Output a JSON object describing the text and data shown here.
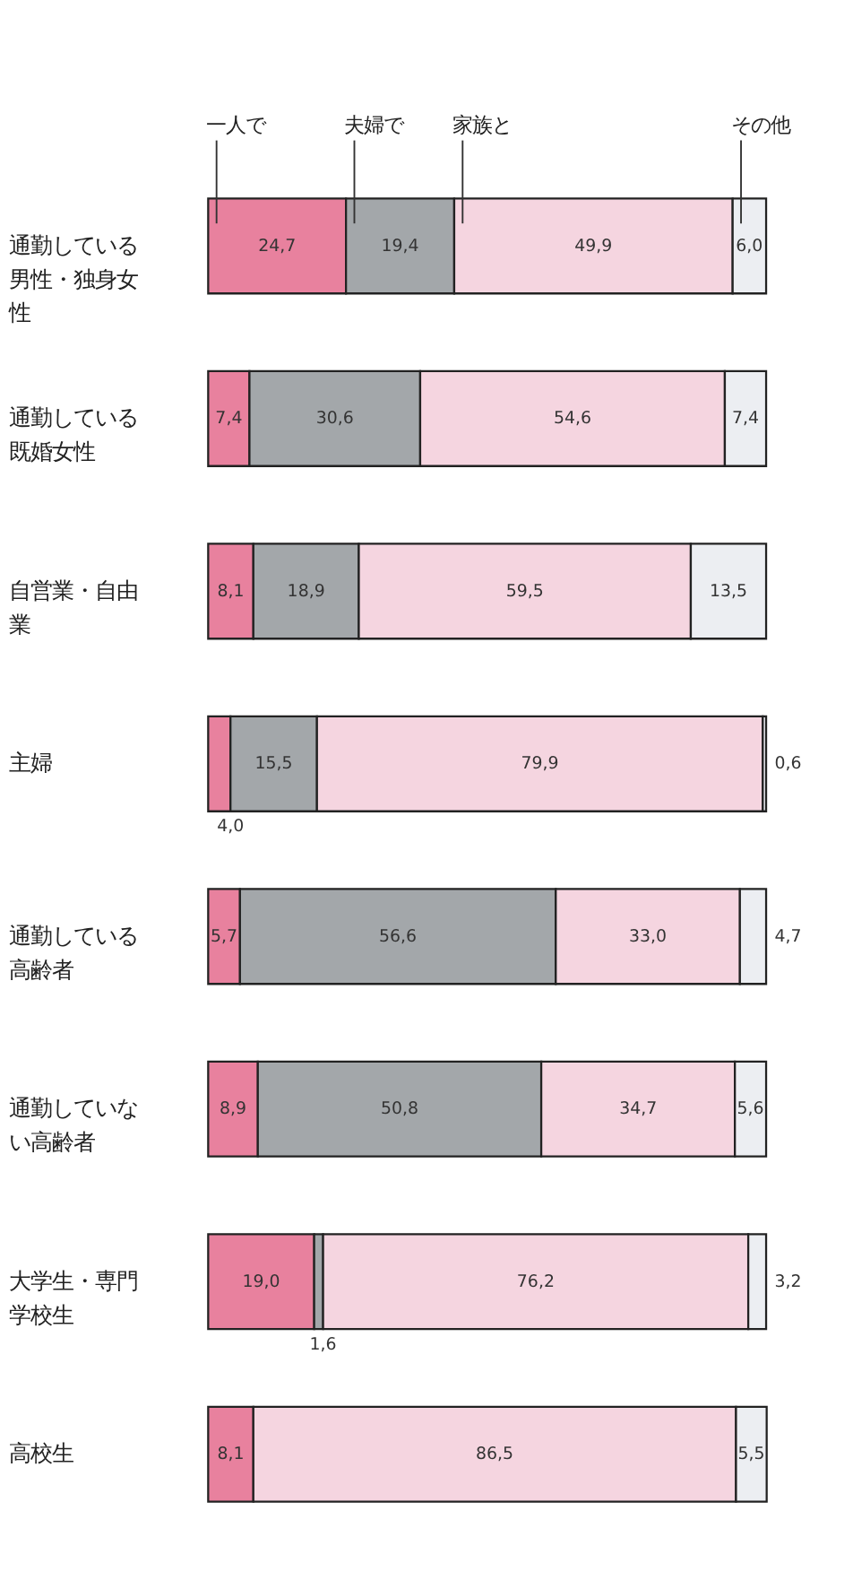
{
  "chart_data": {
    "type": "bar",
    "orientation": "horizontal",
    "stacked": true,
    "legend": "top",
    "categories": [
      "通勤している男性・独身女性",
      "通勤している既婚女性",
      "自営業・自由業",
      "主婦",
      "通勤している高齢者",
      "通勤していない高齢者",
      "大学生・専門学校生",
      "高校生"
    ],
    "series": [
      {
        "name": "一人で",
        "color": "#e8819e",
        "values": [
          24.7,
          7.4,
          8.1,
          4.0,
          5.7,
          8.9,
          19.0,
          8.1
        ],
        "value_labels": [
          "24,7",
          "7,4",
          "8,1",
          "4,0",
          "5,7",
          "8,9",
          "19,0",
          "8,1"
        ]
      },
      {
        "name": "夫婦で",
        "color": "#a3a7aa",
        "values": [
          19.4,
          30.6,
          18.9,
          15.5,
          56.6,
          50.8,
          1.6,
          null
        ],
        "value_labels": [
          "19,4",
          "30,6",
          "18,9",
          "15,5",
          "56,6",
          "50,8",
          "1,6",
          null
        ]
      },
      {
        "name": "家族と",
        "color": "#f5d5e0",
        "values": [
          49.9,
          54.6,
          59.5,
          79.9,
          33.0,
          34.7,
          76.2,
          86.5
        ],
        "value_labels": [
          "49,9",
          "54,6",
          "59,5",
          "79,9",
          "33,0",
          "34,7",
          "76,2",
          "86,5"
        ]
      },
      {
        "name": "その他",
        "color": "#eceef2",
        "values": [
          6.0,
          7.4,
          13.5,
          0.6,
          4.7,
          5.6,
          3.2,
          5.5
        ],
        "value_labels": [
          "6,0",
          "7,4",
          "13,5",
          "0,6",
          "4,7",
          "5,6",
          "3,2",
          "5,5"
        ]
      }
    ]
  }
}
